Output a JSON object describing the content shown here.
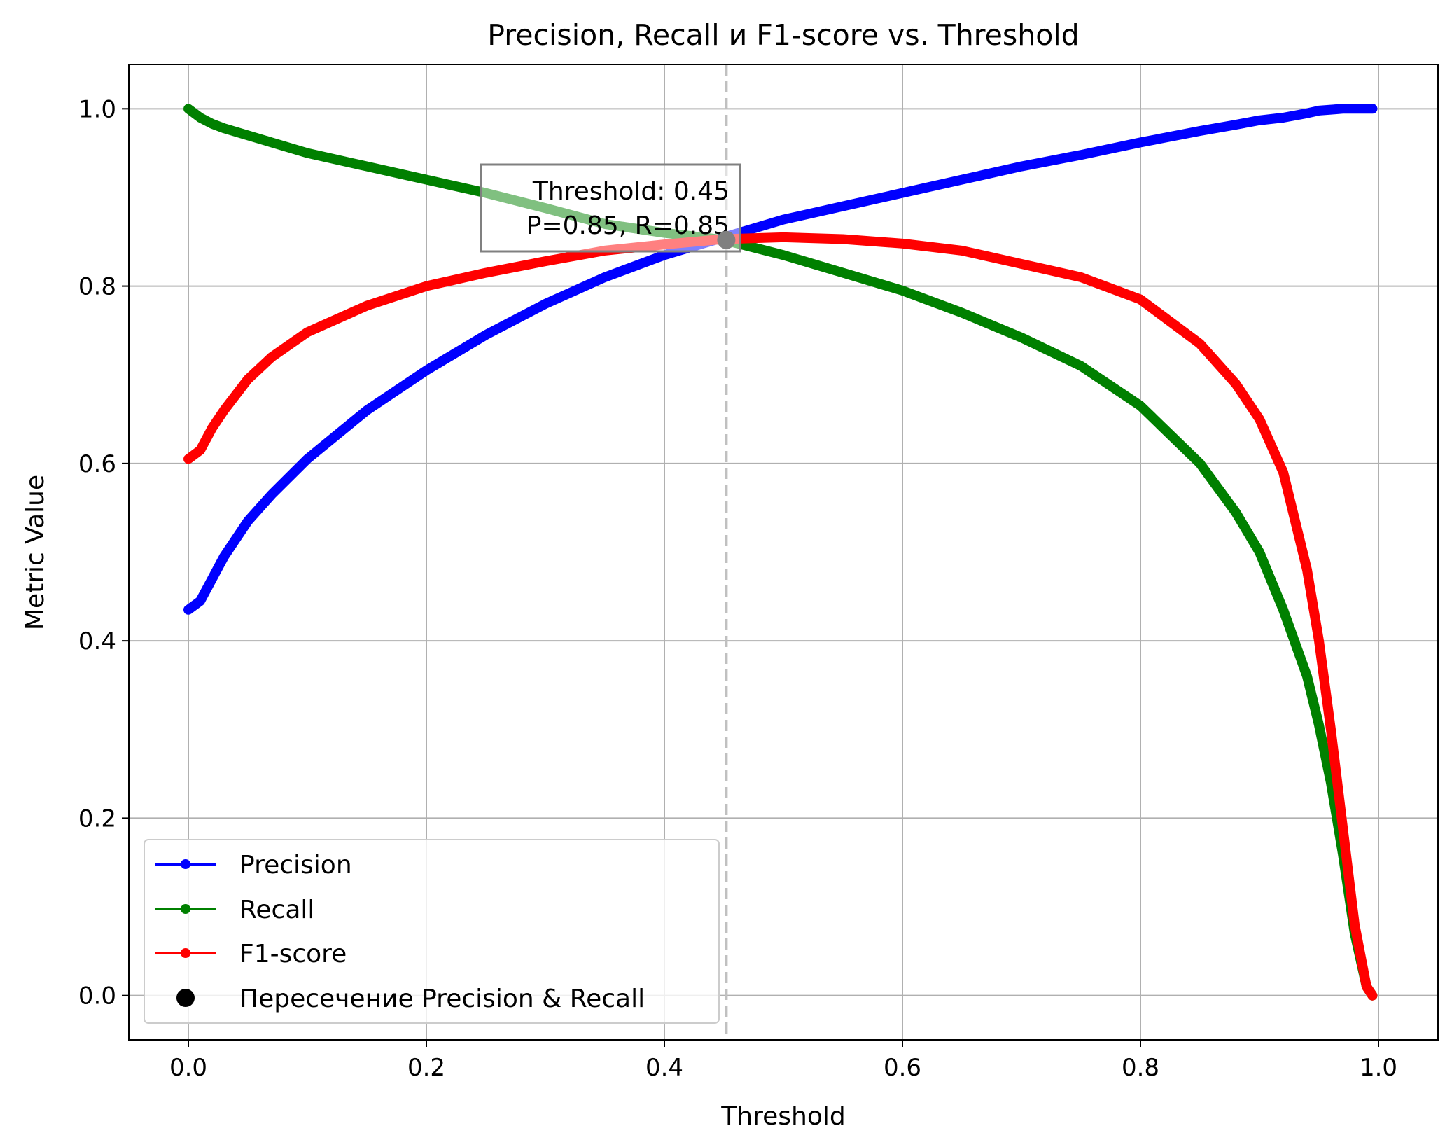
{
  "chart_data": {
    "type": "line",
    "title": "Precision, Recall и F1-score vs. Threshold",
    "xlabel": "Threshold",
    "ylabel": "Metric Value",
    "xlim": [
      -0.05,
      1.05
    ],
    "ylim": [
      -0.05,
      1.05
    ],
    "xticks": [
      0.0,
      0.2,
      0.4,
      0.6,
      0.8,
      1.0
    ],
    "xtick_labels": [
      "0.0",
      "0.2",
      "0.4",
      "0.6",
      "0.8",
      "1.0"
    ],
    "yticks": [
      0.0,
      0.2,
      0.4,
      0.6,
      0.8,
      1.0
    ],
    "ytick_labels": [
      "0.0",
      "0.2",
      "0.4",
      "0.6",
      "0.8",
      "1.0"
    ],
    "grid": true,
    "legend_position": "lower-left",
    "x": [
      0.0,
      0.01,
      0.02,
      0.03,
      0.05,
      0.07,
      0.1,
      0.15,
      0.2,
      0.25,
      0.3,
      0.35,
      0.4,
      0.45,
      0.5,
      0.55,
      0.6,
      0.65,
      0.7,
      0.75,
      0.8,
      0.85,
      0.88,
      0.9,
      0.92,
      0.94,
      0.95,
      0.96,
      0.97,
      0.98,
      0.99,
      0.995
    ],
    "series": [
      {
        "name": "Precision",
        "color": "#0000ff",
        "values": [
          0.435,
          0.445,
          0.47,
          0.495,
          0.535,
          0.565,
          0.605,
          0.66,
          0.705,
          0.745,
          0.78,
          0.81,
          0.835,
          0.855,
          0.875,
          0.89,
          0.905,
          0.92,
          0.935,
          0.948,
          0.962,
          0.975,
          0.982,
          0.987,
          0.99,
          0.995,
          0.998,
          0.999,
          1.0,
          1.0,
          1.0,
          1.0
        ]
      },
      {
        "name": "Recall",
        "color": "#008000",
        "values": [
          1.0,
          0.99,
          0.983,
          0.978,
          0.97,
          0.962,
          0.95,
          0.935,
          0.92,
          0.905,
          0.888,
          0.87,
          0.86,
          0.852,
          0.835,
          0.815,
          0.795,
          0.77,
          0.742,
          0.71,
          0.665,
          0.6,
          0.545,
          0.5,
          0.435,
          0.36,
          0.305,
          0.24,
          0.16,
          0.07,
          0.01,
          0.0
        ]
      },
      {
        "name": "F1-score",
        "color": "#ff0000",
        "values": [
          0.605,
          0.615,
          0.64,
          0.66,
          0.695,
          0.72,
          0.748,
          0.778,
          0.8,
          0.815,
          0.828,
          0.84,
          0.847,
          0.853,
          0.855,
          0.853,
          0.848,
          0.84,
          0.825,
          0.81,
          0.785,
          0.735,
          0.69,
          0.65,
          0.59,
          0.48,
          0.4,
          0.3,
          0.19,
          0.08,
          0.01,
          0.0
        ]
      }
    ],
    "intersection": {
      "name": "Пересечение Precision & Recall",
      "x": 0.452,
      "y": 0.852,
      "color": "#808080",
      "legend_color": "#000000",
      "vline_color": "#c0c0c0"
    },
    "annotation": {
      "line1": "Threshold: 0.45",
      "line2": "P=0.85, R=0.85"
    }
  }
}
